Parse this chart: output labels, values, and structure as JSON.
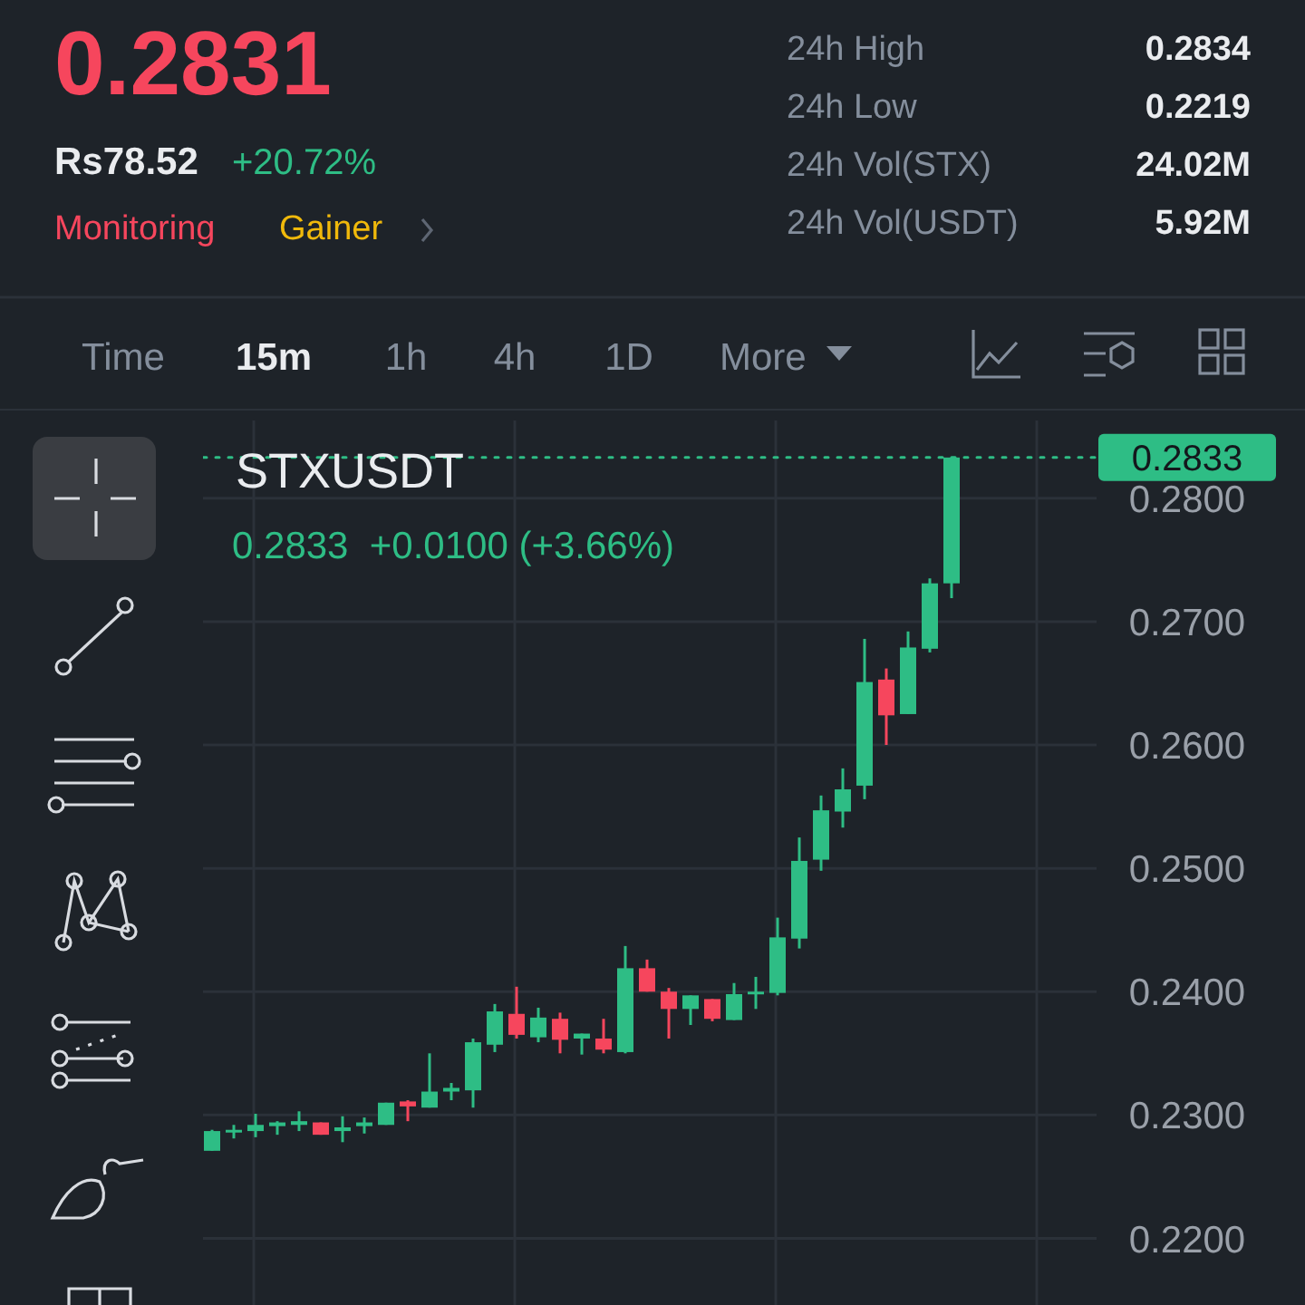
{
  "chart_data": {
    "type": "candlestick",
    "title": "STXUSDT",
    "subtitle": "0.2833  +0.0100 (+3.66%)",
    "annotations": [
      "0.2831",
      "Rs78.52",
      "+20.72%",
      "Monitoring",
      "Gainer",
      "24h High",
      "0.2834",
      "24h Low",
      "0.2219",
      "24h Vol(STX)",
      "24.02M",
      "24h Vol(USDT)",
      "5.92M",
      "Time",
      "15m",
      "1h",
      "4h",
      "1D",
      "More"
    ],
    "categories": [
      null,
      null,
      null,
      null,
      null,
      null,
      null,
      null,
      null,
      null,
      null,
      null,
      null,
      null,
      null,
      null,
      null,
      null,
      null,
      null,
      null,
      null,
      null,
      null,
      null,
      null,
      null,
      null,
      null,
      null,
      null,
      null,
      null,
      null,
      null
    ],
    "ohlc": [
      [
        0.2271,
        0.2288,
        0.2271,
        0.2287
      ],
      [
        0.2287,
        0.2292,
        0.2281,
        0.2288
      ],
      [
        0.2287,
        0.2301,
        0.2282,
        0.2292
      ],
      [
        0.2291,
        0.2295,
        0.2284,
        0.2294
      ],
      [
        0.2292,
        0.2303,
        0.2287,
        0.2295
      ],
      [
        0.2294,
        0.2294,
        0.2284,
        0.2284
      ],
      [
        0.2287,
        0.2299,
        0.2278,
        0.229
      ],
      [
        0.2291,
        0.2298,
        0.2285,
        0.2294
      ],
      [
        0.2292,
        0.231,
        0.2292,
        0.231
      ],
      [
        0.2311,
        0.2312,
        0.2295,
        0.2307
      ],
      [
        0.2306,
        0.235,
        0.2306,
        0.2319
      ],
      [
        0.2319,
        0.2326,
        0.2312,
        0.2322
      ],
      [
        0.232,
        0.2362,
        0.2306,
        0.2359
      ],
      [
        0.2357,
        0.239,
        0.2351,
        0.2384
      ],
      [
        0.2382,
        0.2404,
        0.2362,
        0.2365
      ],
      [
        0.2363,
        0.2387,
        0.2359,
        0.2379
      ],
      [
        0.2378,
        0.2383,
        0.235,
        0.2361
      ],
      [
        0.2362,
        0.2366,
        0.2349,
        0.2366
      ],
      [
        0.2362,
        0.2378,
        0.235,
        0.2353
      ],
      [
        0.2351,
        0.2437,
        0.235,
        0.2419
      ],
      [
        0.2419,
        0.2426,
        0.24,
        0.24
      ],
      [
        0.24,
        0.2403,
        0.2362,
        0.2386
      ],
      [
        0.2386,
        0.2397,
        0.2373,
        0.2397
      ],
      [
        0.2394,
        0.2394,
        0.2376,
        0.2378
      ],
      [
        0.2377,
        0.2407,
        0.2377,
        0.2398
      ],
      [
        0.2398,
        0.2412,
        0.2386,
        0.24
      ],
      [
        0.2399,
        0.246,
        0.2397,
        0.2444
      ],
      [
        0.2443,
        0.2525,
        0.2435,
        0.2506
      ],
      [
        0.2507,
        0.2559,
        0.2498,
        0.2547
      ],
      [
        0.2546,
        0.2581,
        0.2533,
        0.2564
      ],
      [
        0.2567,
        0.2686,
        0.2556,
        0.2651
      ],
      [
        0.2653,
        0.2662,
        0.26,
        0.2624
      ],
      [
        0.2625,
        0.2692,
        0.2625,
        0.2679
      ],
      [
        0.2678,
        0.2735,
        0.2675,
        0.2731
      ],
      [
        0.2731,
        0.2833,
        0.2719,
        0.2833
      ]
    ],
    "colors": [
      "#2ebd85",
      "#2ebd85",
      "#2ebd85",
      "#2ebd85",
      "#2ebd85",
      "#f6465d",
      "#2ebd85",
      "#2ebd85",
      "#2ebd85",
      "#f6465d",
      "#2ebd85",
      "#2ebd85",
      "#2ebd85",
      "#2ebd85",
      "#f6465d",
      "#2ebd85",
      "#f6465d",
      "#2ebd85",
      "#f6465d",
      "#2ebd85",
      "#f6465d",
      "#f6465d",
      "#2ebd85",
      "#f6465d",
      "#2ebd85",
      "#2ebd85",
      "#2ebd85",
      "#2ebd85",
      "#2ebd85",
      "#2ebd85",
      "#2ebd85",
      "#f6465d",
      "#2ebd85",
      "#2ebd85",
      "#2ebd85"
    ],
    "ylim": [
      0.2146,
      0.2863
    ],
    "yticks": [
      {
        "value": 0.22,
        "label": "0.2200"
      },
      {
        "value": 0.23,
        "label": "0.2300"
      },
      {
        "value": 0.24,
        "label": "0.2400"
      },
      {
        "value": 0.25,
        "label": "0.2500"
      },
      {
        "value": 0.26,
        "label": "0.2600"
      },
      {
        "value": 0.27,
        "label": "0.2700"
      },
      {
        "value": 0.28,
        "label": "0.2800"
      }
    ],
    "tick_labels": "y",
    "grid": true,
    "ref_lines": [
      {
        "axis": "y",
        "value": 0.2833,
        "label": "0.2833",
        "color": "#2ebd85",
        "line_style": "dotted"
      }
    ]
  }
}
